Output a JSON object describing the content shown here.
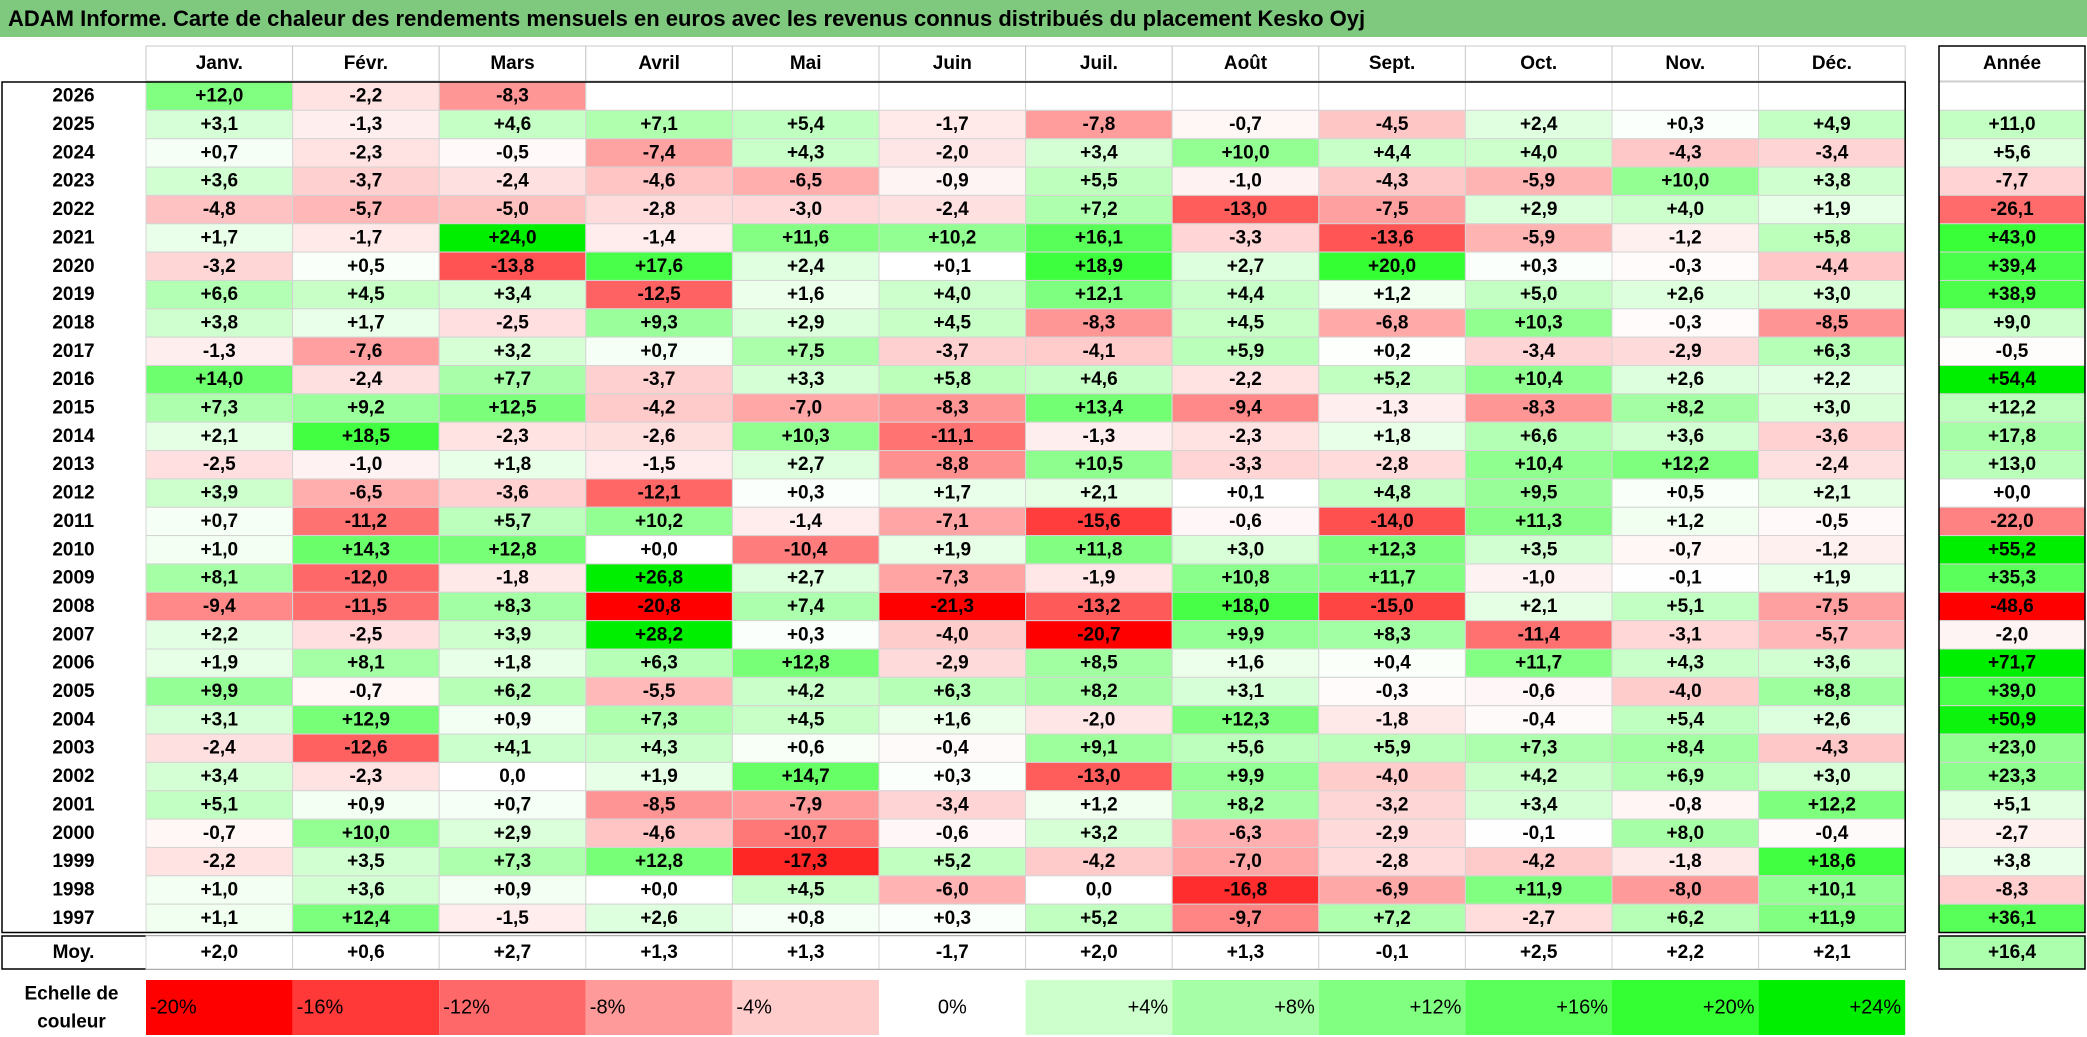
{
  "title": "ADAM Informe. Carte de chaleur des rendements mensuels en euros avec les revenus connus distribués du placement Kesko Oyj",
  "chart_data": {
    "type": "heatmap",
    "columns": [
      "Janv.",
      "Févr.",
      "Mars",
      "Avril",
      "Mai",
      "Juin",
      "Juil.",
      "Août",
      "Sept.",
      "Oct.",
      "Nov.",
      "Déc."
    ],
    "year_header": "Année",
    "rows": [
      {
        "label": "2026",
        "values": [
          "+12,0",
          "-2,2",
          "-8,3",
          "",
          "",
          "",
          "",
          "",
          "",
          "",
          "",
          ""
        ],
        "year": ""
      },
      {
        "label": "2025",
        "values": [
          "+3,1",
          "-1,3",
          "+4,6",
          "+7,1",
          "+5,4",
          "-1,7",
          "-7,8",
          "-0,7",
          "-4,5",
          "+2,4",
          "+0,3",
          "+4,9"
        ],
        "year": "+11,0"
      },
      {
        "label": "2024",
        "values": [
          "+0,7",
          "-2,3",
          "-0,5",
          "-7,4",
          "+4,3",
          "-2,0",
          "+3,4",
          "+10,0",
          "+4,4",
          "+4,0",
          "-4,3",
          "-3,4"
        ],
        "year": "+5,6"
      },
      {
        "label": "2023",
        "values": [
          "+3,6",
          "-3,7",
          "-2,4",
          "-4,6",
          "-6,5",
          "-0,9",
          "+5,5",
          "-1,0",
          "-4,3",
          "-5,9",
          "+10,0",
          "+3,8"
        ],
        "year": "-7,7"
      },
      {
        "label": "2022",
        "values": [
          "-4,8",
          "-5,7",
          "-5,0",
          "-2,8",
          "-3,0",
          "-2,4",
          "+7,2",
          "-13,0",
          "-7,5",
          "+2,9",
          "+4,0",
          "+1,9"
        ],
        "year": "-26,1"
      },
      {
        "label": "2021",
        "values": [
          "+1,7",
          "-1,7",
          "+24,0",
          "-1,4",
          "+11,6",
          "+10,2",
          "+16,1",
          "-3,3",
          "-13,6",
          "-5,9",
          "-1,2",
          "+5,8"
        ],
        "year": "+43,0"
      },
      {
        "label": "2020",
        "values": [
          "-3,2",
          "+0,5",
          "-13,8",
          "+17,6",
          "+2,4",
          "+0,1",
          "+18,9",
          "+2,7",
          "+20,0",
          "+0,3",
          "-0,3",
          "-4,4"
        ],
        "year": "+39,4"
      },
      {
        "label": "2019",
        "values": [
          "+6,6",
          "+4,5",
          "+3,4",
          "-12,5",
          "+1,6",
          "+4,0",
          "+12,1",
          "+4,4",
          "+1,2",
          "+5,0",
          "+2,6",
          "+3,0"
        ],
        "year": "+38,9"
      },
      {
        "label": "2018",
        "values": [
          "+3,8",
          "+1,7",
          "-2,5",
          "+9,3",
          "+2,9",
          "+4,5",
          "-8,3",
          "+4,5",
          "-6,8",
          "+10,3",
          "-0,3",
          "-8,5"
        ],
        "year": "+9,0"
      },
      {
        "label": "2017",
        "values": [
          "-1,3",
          "-7,6",
          "+3,2",
          "+0,7",
          "+7,5",
          "-3,7",
          "-4,1",
          "+5,9",
          "+0,2",
          "-3,4",
          "-2,9",
          "+6,3"
        ],
        "year": "-0,5"
      },
      {
        "label": "2016",
        "values": [
          "+14,0",
          "-2,4",
          "+7,7",
          "-3,7",
          "+3,3",
          "+5,8",
          "+4,6",
          "-2,2",
          "+5,2",
          "+10,4",
          "+2,6",
          "+2,2"
        ],
        "year": "+54,4"
      },
      {
        "label": "2015",
        "values": [
          "+7,3",
          "+9,2",
          "+12,5",
          "-4,2",
          "-7,0",
          "-8,3",
          "+13,4",
          "-9,4",
          "-1,3",
          "-8,3",
          "+8,2",
          "+3,0"
        ],
        "year": "+12,2"
      },
      {
        "label": "2014",
        "values": [
          "+2,1",
          "+18,5",
          "-2,3",
          "-2,6",
          "+10,3",
          "-11,1",
          "-1,3",
          "-2,3",
          "+1,8",
          "+6,6",
          "+3,6",
          "-3,6"
        ],
        "year": "+17,8"
      },
      {
        "label": "2013",
        "values": [
          "-2,5",
          "-1,0",
          "+1,8",
          "-1,5",
          "+2,7",
          "-8,8",
          "+10,5",
          "-3,3",
          "-2,8",
          "+10,4",
          "+12,2",
          "-2,4"
        ],
        "year": "+13,0"
      },
      {
        "label": "2012",
        "values": [
          "+3,9",
          "-6,5",
          "-3,6",
          "-12,1",
          "+0,3",
          "+1,7",
          "+2,1",
          "+0,1",
          "+4,8",
          "+9,5",
          "+0,5",
          "+2,1"
        ],
        "year": "+0,0"
      },
      {
        "label": "2011",
        "values": [
          "+0,7",
          "-11,2",
          "+5,7",
          "+10,2",
          "-1,4",
          "-7,1",
          "-15,6",
          "-0,6",
          "-14,0",
          "+11,3",
          "+1,2",
          "-0,5"
        ],
        "year": "-22,0"
      },
      {
        "label": "2010",
        "values": [
          "+1,0",
          "+14,3",
          "+12,8",
          "+0,0",
          "-10,4",
          "+1,9",
          "+11,8",
          "+3,0",
          "+12,3",
          "+3,5",
          "-0,7",
          "-1,2"
        ],
        "year": "+55,2"
      },
      {
        "label": "2009",
        "values": [
          "+8,1",
          "-12,0",
          "-1,8",
          "+26,8",
          "+2,7",
          "-7,3",
          "-1,9",
          "+10,8",
          "+11,7",
          "-1,0",
          "-0,1",
          "+1,9"
        ],
        "year": "+35,3"
      },
      {
        "label": "2008",
        "values": [
          "-9,4",
          "-11,5",
          "+8,3",
          "-20,8",
          "+7,4",
          "-21,3",
          "-13,2",
          "+18,0",
          "-15,0",
          "+2,1",
          "+5,1",
          "-7,5"
        ],
        "year": "-48,6"
      },
      {
        "label": "2007",
        "values": [
          "+2,2",
          "-2,5",
          "+3,9",
          "+28,2",
          "+0,3",
          "-4,0",
          "-20,7",
          "+9,9",
          "+8,3",
          "-11,4",
          "-3,1",
          "-5,7"
        ],
        "year": "-2,0"
      },
      {
        "label": "2006",
        "values": [
          "+1,9",
          "+8,1",
          "+1,8",
          "+6,3",
          "+12,8",
          "-2,9",
          "+8,5",
          "+1,6",
          "+0,4",
          "+11,7",
          "+4,3",
          "+3,6"
        ],
        "year": "+71,7"
      },
      {
        "label": "2005",
        "values": [
          "+9,9",
          "-0,7",
          "+6,2",
          "-5,5",
          "+4,2",
          "+6,3",
          "+8,2",
          "+3,1",
          "-0,3",
          "-0,6",
          "-4,0",
          "+8,8"
        ],
        "year": "+39,0"
      },
      {
        "label": "2004",
        "values": [
          "+3,1",
          "+12,9",
          "+0,9",
          "+7,3",
          "+4,5",
          "+1,6",
          "-2,0",
          "+12,3",
          "-1,8",
          "-0,4",
          "+5,4",
          "+2,6"
        ],
        "year": "+50,9"
      },
      {
        "label": "2003",
        "values": [
          "-2,4",
          "-12,6",
          "+4,1",
          "+4,3",
          "+0,6",
          "-0,4",
          "+9,1",
          "+5,6",
          "+5,9",
          "+7,3",
          "+8,4",
          "-4,3"
        ],
        "year": "+23,0"
      },
      {
        "label": "2002",
        "values": [
          "+3,4",
          "-2,3",
          "0,0",
          "+1,9",
          "+14,7",
          "+0,3",
          "-13,0",
          "+9,9",
          "-4,0",
          "+4,2",
          "+6,9",
          "+3,0"
        ],
        "year": "+23,3"
      },
      {
        "label": "2001",
        "values": [
          "+5,1",
          "+0,9",
          "+0,7",
          "-8,5",
          "-7,9",
          "-3,4",
          "+1,2",
          "+8,2",
          "-3,2",
          "+3,4",
          "-0,8",
          "+12,2"
        ],
        "year": "+5,1"
      },
      {
        "label": "2000",
        "values": [
          "-0,7",
          "+10,0",
          "+2,9",
          "-4,6",
          "-10,7",
          "-0,6",
          "+3,2",
          "-6,3",
          "-2,9",
          "-0,1",
          "+8,0",
          "-0,4"
        ],
        "year": "-2,7"
      },
      {
        "label": "1999",
        "values": [
          "-2,2",
          "+3,5",
          "+7,3",
          "+12,8",
          "-17,3",
          "+5,2",
          "-4,2",
          "-7,0",
          "-2,8",
          "-4,2",
          "-1,8",
          "+18,6"
        ],
        "year": "+3,8"
      },
      {
        "label": "1998",
        "values": [
          "+1,0",
          "+3,6",
          "+0,9",
          "+0,0",
          "+4,5",
          "-6,0",
          "0,0",
          "-16,8",
          "-6,9",
          "+11,9",
          "-8,0",
          "+10,1"
        ],
        "year": "-8,3"
      },
      {
        "label": "1997",
        "values": [
          "+1,1",
          "+12,4",
          "-1,5",
          "+2,6",
          "+0,8",
          "+0,3",
          "+5,2",
          "-9,7",
          "+7,2",
          "-2,7",
          "+6,2",
          "+11,9"
        ],
        "year": "+36,1"
      }
    ],
    "average": {
      "label": "Moy.",
      "values": [
        "+2,0",
        "+0,6",
        "+2,7",
        "+1,3",
        "+1,3",
        "-1,7",
        "+2,0",
        "+1,3",
        "-0,1",
        "+2,5",
        "+2,2",
        "+2,1"
      ],
      "year": "+16,4"
    },
    "color_scale": {
      "label_line1": "Echelle de",
      "label_line2": "couleur",
      "stops": [
        "-20%",
        "-16%",
        "-12%",
        "-8%",
        "-4%",
        "0%",
        "+4%",
        "+8%",
        "+12%",
        "+16%",
        "+20%",
        "+24%"
      ],
      "stop_values": [
        -20,
        -16,
        -12,
        -8,
        -4,
        0,
        4,
        8,
        12,
        16,
        20,
        24
      ],
      "stop_colors": [
        "#ff0000",
        "#ff3838",
        "#ff6868",
        "#ff9a9a",
        "#ffcccc",
        "#ffffff",
        "#ccffcc",
        "#a6ffa6",
        "#80ff80",
        "#5aff5a",
        "#33ff33",
        "#00ee00"
      ]
    },
    "colors": {
      "negative_max": "#ff0000",
      "neutral": "#ffffff",
      "positive_max": "#00ee00",
      "title_bg": "#7fc97f"
    }
  }
}
